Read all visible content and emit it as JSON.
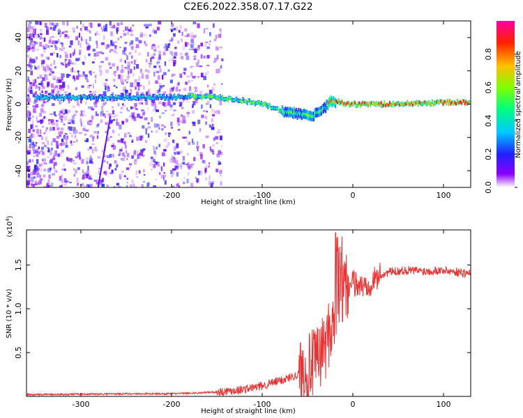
{
  "title": "C2E6.2022.358.07.17.G22",
  "colors": {
    "snr_line": "#ee3030",
    "low_energy": "#8800ee",
    "axis": "#000000"
  },
  "chart_data": [
    {
      "type": "heatmap",
      "xlabel": "Height of straight line (km)",
      "ylabel": "Frequency (Hz)",
      "xlim": [
        -360,
        130
      ],
      "ylim": [
        -50,
        50
      ],
      "xticks": [
        -300,
        -200,
        -100,
        0,
        100
      ],
      "yticks": [
        -40,
        -20,
        0,
        20,
        40
      ],
      "xtick_labels": [
        "-300",
        "-200",
        "-100",
        "0",
        "100"
      ],
      "ytick_labels": [
        "-40",
        "-20",
        "0",
        "20",
        "40"
      ],
      "ridge": {
        "x": [
          -350,
          -300,
          -250,
          -200,
          -175,
          -150,
          -120,
          -100,
          -80,
          -60,
          -45,
          -35,
          -25,
          -15,
          0,
          50,
          100,
          125
        ],
        "freq": [
          4,
          4,
          4,
          4,
          5,
          4,
          2,
          0,
          -4,
          -6,
          -7,
          -4,
          2,
          1,
          0,
          0,
          1,
          1
        ]
      },
      "colorbar": {
        "label": "Normalized spectral amplitude",
        "range": [
          0.0,
          1.0
        ],
        "ticks": [
          0.0,
          0.2,
          0.4,
          0.6,
          0.8
        ],
        "tick_labels": [
          "0.0",
          "0.2",
          "0.4",
          "0.6",
          "0.8"
        ]
      }
    },
    {
      "type": "line",
      "xlabel": "Height of straight line (km)",
      "ylabel": "SNR (10 * v/v)",
      "yscale_label": "(x10",
      "yscale_exp": "4",
      "yscale_close": ")",
      "xlim": [
        -360,
        130
      ],
      "ylim": [
        0,
        1.9
      ],
      "xticks": [
        -300,
        -200,
        -100,
        0,
        100
      ],
      "yticks": [
        0.5,
        1.0,
        1.5
      ],
      "xtick_labels": [
        "-300",
        "-200",
        "-100",
        "0",
        "100"
      ],
      "ytick_labels": [
        "0.5",
        "1.0",
        "1.5"
      ],
      "series": [
        {
          "name": "SNR",
          "x": [
            -360,
            -250,
            -200,
            -170,
            -150,
            -120,
            -100,
            -80,
            -60,
            -40,
            -30,
            -20,
            -10,
            0,
            10,
            20,
            30,
            40,
            60,
            80,
            100,
            115,
            130
          ],
          "y": [
            0.02,
            0.03,
            0.03,
            0.04,
            0.05,
            0.08,
            0.12,
            0.18,
            0.25,
            0.4,
            0.6,
            0.9,
            1.2,
            1.3,
            1.25,
            1.3,
            1.38,
            1.42,
            1.44,
            1.43,
            1.44,
            1.42,
            1.4
          ]
        }
      ]
    }
  ]
}
